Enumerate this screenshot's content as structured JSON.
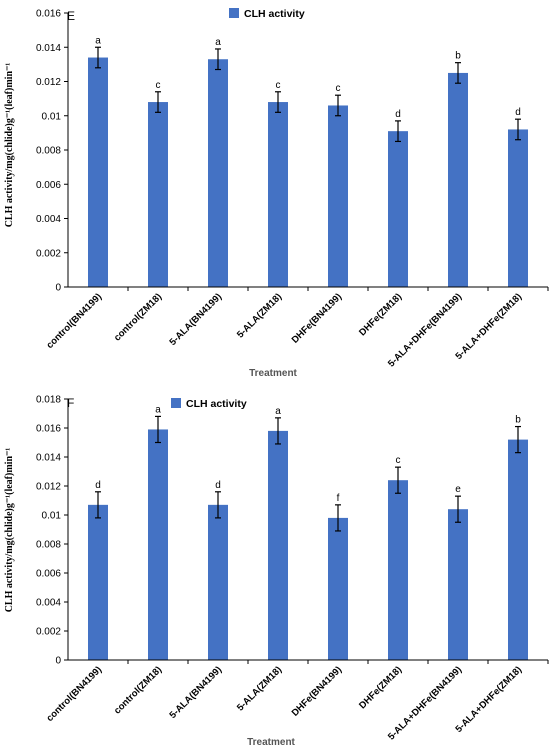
{
  "colors": {
    "bar": "#4472c4",
    "axis": "#000000",
    "error": "#000000"
  },
  "chart_data": [
    {
      "type": "bar",
      "panel": "E",
      "legend": "CLH activity",
      "legend_position": "top-center",
      "xlabel": "Treatment",
      "ylabel": "CLH activity/mg(chlide)g⁻¹(leaf)min⁻¹",
      "ylim": [
        0,
        0.016
      ],
      "yticks": [
        "0",
        "0.002",
        "0.004",
        "0.006",
        "0.008",
        "0.01",
        "0.012",
        "0.014",
        "0.016"
      ],
      "ystep": 0.002,
      "grid": false,
      "categories": [
        "control(BN4199)",
        "control(ZM18)",
        "5-ALA(BN4199)",
        "5-ALA(ZM18)",
        "DHFe(BN4199)",
        "DHFe(ZM18)",
        "5-ALA+DHFe(BN4199)",
        "5-ALA+DHFe(ZM18)"
      ],
      "series": [
        {
          "values": [
            0.0134,
            0.0108,
            0.0133,
            0.0108,
            0.0106,
            0.0091,
            0.0125,
            0.0092
          ],
          "errors": [
            0.0006,
            0.0006,
            0.0006,
            0.0006,
            0.0006,
            0.0006,
            0.0006,
            0.0006
          ],
          "letters": [
            "a",
            "c",
            "a",
            "c",
            "c",
            "d",
            "b",
            "d"
          ]
        }
      ]
    },
    {
      "type": "bar",
      "panel": "F",
      "legend": "CLH activity",
      "legend_position": "top-left",
      "xlabel": "Treatment",
      "ylabel": "CLH activity/mg(chlide)g⁻¹(leaf)min⁻¹",
      "ylim": [
        0,
        0.018
      ],
      "yticks": [
        "0",
        "0.002",
        "0.004",
        "0.006",
        "0.008",
        "0.01",
        "0.012",
        "0.014",
        "0.016",
        "0.018"
      ],
      "ystep": 0.002,
      "grid": false,
      "categories": [
        "control(BN4199)",
        "control(ZM18)",
        "5-ALA(BN4199)",
        "5-ALA(ZM18)",
        "DHFe(BN4199)",
        "DHFe(ZM18)",
        "5-ALA+DHFe(BN4199)",
        "5-ALA+DHFe(ZM18)"
      ],
      "series": [
        {
          "values": [
            0.0107,
            0.0159,
            0.0107,
            0.0158,
            0.0098,
            0.0124,
            0.0104,
            0.0152
          ],
          "errors": [
            0.0009,
            0.0009,
            0.0009,
            0.0009,
            0.0009,
            0.0009,
            0.0009,
            0.0009
          ],
          "letters": [
            "d",
            "a",
            "d",
            "a",
            "f",
            "c",
            "e",
            "b"
          ]
        }
      ]
    }
  ]
}
